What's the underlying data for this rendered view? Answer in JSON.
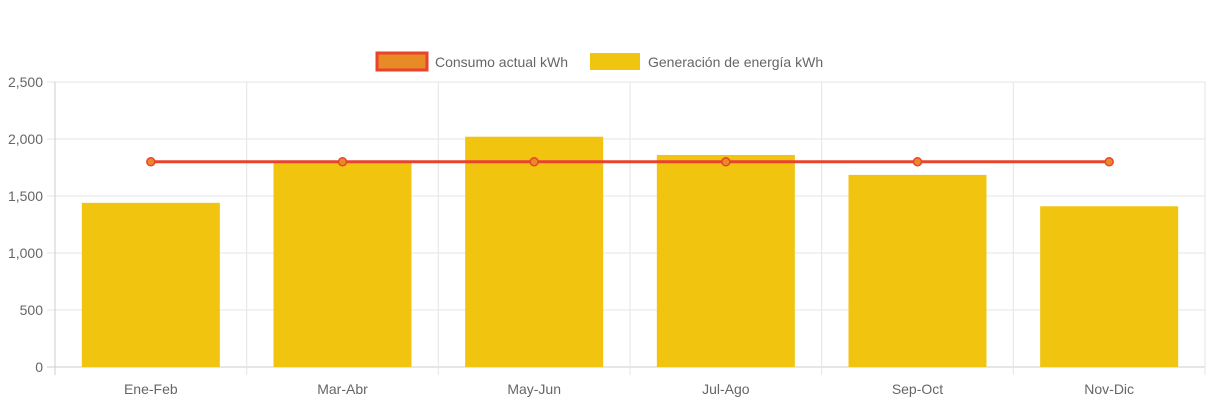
{
  "chart_data": {
    "type": "bar",
    "categories": [
      "Ene-Feb",
      "Mar-Abr",
      "May-Jun",
      "Jul-Ago",
      "Sep-Oct",
      "Nov-Dic"
    ],
    "series": [
      {
        "name": "Consumo actual kWh",
        "type": "line",
        "values": [
          1800,
          1800,
          1800,
          1800,
          1800,
          1800
        ],
        "color": "#e8432f",
        "point_color": "#e88a26"
      },
      {
        "name": "Generación de energía kWh",
        "type": "bar",
        "values": [
          1440,
          1800,
          2020,
          1860,
          1685,
          1410
        ],
        "color": "#f0c40f"
      }
    ],
    "ylim": [
      0,
      2500
    ],
    "yticks": [
      0,
      500,
      1000,
      1500,
      2000,
      2500
    ],
    "ytick_labels": [
      "0",
      "500",
      "1,000",
      "1,500",
      "2,000",
      "2,500"
    ],
    "grid": true,
    "legend_position": "top"
  }
}
